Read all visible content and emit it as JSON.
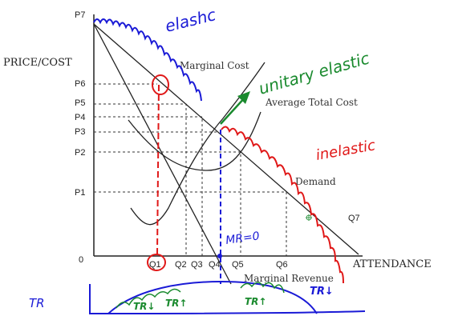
{
  "axes": {
    "y_label": "PRICE/COST",
    "x_label": "ATTENDANCE",
    "origin": "0",
    "price_ticks": [
      "P7",
      "P6",
      "P5",
      "P4",
      "P3",
      "P2",
      "P1"
    ],
    "quantity_ticks": [
      "Q1",
      "Q2",
      "Q3",
      "Q4",
      "Q5",
      "Q6",
      "Q7"
    ]
  },
  "curves": {
    "marginal_cost": "Marginal Cost",
    "average_total_cost": "Average Total Cost",
    "demand": "Demand",
    "marginal_revenue": "Marginal Revenue"
  },
  "annotations": {
    "elastic": "elashc",
    "unitary_elastic": "unitary elastic",
    "inelastic": "inelastic",
    "mr_zero": "MR=0",
    "tr": "TR",
    "tr_down_left": "TR↓",
    "tr_up_1": "TR↑",
    "tr_up_2": "TR↑",
    "tr_down_right": "TR↓"
  },
  "colors": {
    "ink": "#222222",
    "elastic": "#1a1ad6",
    "unitary": "#1a8a2e",
    "inelastic": "#e01818"
  }
}
